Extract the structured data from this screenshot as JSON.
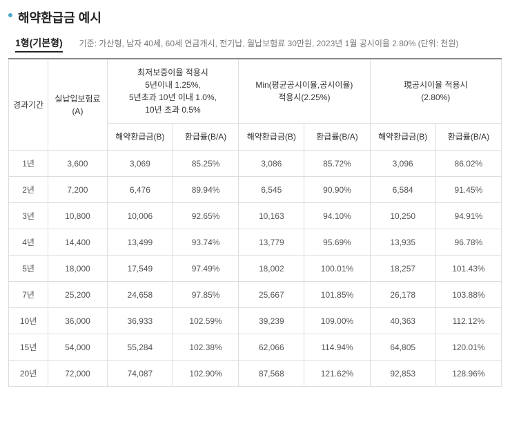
{
  "title": "해약환급금 예시",
  "subtitle": "1형(기본형)",
  "criteria": "기준: 가산형, 남자 40세, 60세 연금개시, 전기납, 월납보험료 30만원, 2023년 1월 공시이율 2.80% (단위: 천원)",
  "headers": {
    "period": "경과기간",
    "paid": "실납입보험료\n(A)",
    "group1_line1": "최저보증이율 적용시",
    "group1_line2": "5년이내 1.25%,",
    "group1_line3": "5년초과 10년 이내 1.0%,",
    "group1_line4": "10년 초과 0.5%",
    "group2_line1": "Min(평균공시이율,공시이율)",
    "group2_line2": "적용시(2.25%)",
    "group3_line1": "現공시이율 적용시",
    "group3_line2": "(2.80%)",
    "refund": "해약환급금(B)",
    "rate": "환급률(B/A)"
  },
  "rows": [
    {
      "period": "1년",
      "paid": "3,600",
      "r1": "3,069",
      "p1": "85.25%",
      "r2": "3,086",
      "p2": "85.72%",
      "r3": "3,096",
      "p3": "86.02%"
    },
    {
      "period": "2년",
      "paid": "7,200",
      "r1": "6,476",
      "p1": "89.94%",
      "r2": "6,545",
      "p2": "90.90%",
      "r3": "6,584",
      "p3": "91.45%"
    },
    {
      "period": "3년",
      "paid": "10,800",
      "r1": "10,006",
      "p1": "92.65%",
      "r2": "10,163",
      "p2": "94.10%",
      "r3": "10,250",
      "p3": "94.91%"
    },
    {
      "period": "4년",
      "paid": "14,400",
      "r1": "13,499",
      "p1": "93.74%",
      "r2": "13,779",
      "p2": "95.69%",
      "r3": "13,935",
      "p3": "96.78%"
    },
    {
      "period": "5년",
      "paid": "18,000",
      "r1": "17,549",
      "p1": "97.49%",
      "r2": "18,002",
      "p2": "100.01%",
      "r3": "18,257",
      "p3": "101.43%"
    },
    {
      "period": "7년",
      "paid": "25,200",
      "r1": "24,658",
      "p1": "97.85%",
      "r2": "25,667",
      "p2": "101.85%",
      "r3": "26,178",
      "p3": "103.88%"
    },
    {
      "period": "10년",
      "paid": "36,000",
      "r1": "36,933",
      "p1": "102.59%",
      "r2": "39,239",
      "p2": "109.00%",
      "r3": "40,363",
      "p3": "112.12%"
    },
    {
      "period": "15년",
      "paid": "54,000",
      "r1": "55,284",
      "p1": "102.38%",
      "r2": "62,066",
      "p2": "114.94%",
      "r3": "64,805",
      "p3": "120.01%"
    },
    {
      "period": "20년",
      "paid": "72,000",
      "r1": "74,087",
      "p1": "102.90%",
      "r2": "87,568",
      "p2": "121.62%",
      "r3": "92,853",
      "p3": "128.96%"
    }
  ]
}
